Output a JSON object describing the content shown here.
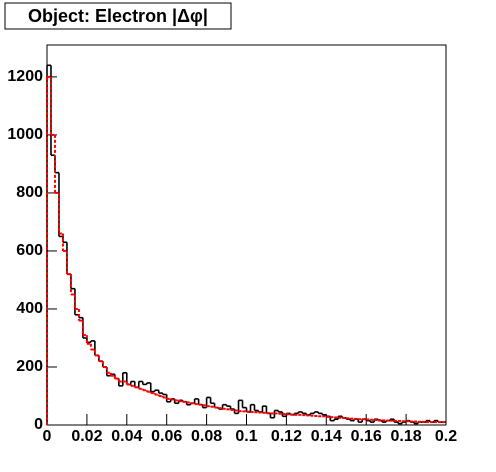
{
  "chart_data": {
    "type": "histogram",
    "title": "Object: Electron |Δφ|",
    "bins": [
      0,
      0.002,
      0.004,
      0.006,
      0.008,
      0.01,
      0.012,
      0.014,
      0.016,
      0.018,
      0.02,
      0.022,
      0.024,
      0.026,
      0.028,
      0.03,
      0.032,
      0.034,
      0.036,
      0.038,
      0.04,
      0.042,
      0.044,
      0.046,
      0.048,
      0.05,
      0.052,
      0.054,
      0.056,
      0.058,
      0.06,
      0.062,
      0.064,
      0.066,
      0.068,
      0.07,
      0.072,
      0.074,
      0.076,
      0.078,
      0.08,
      0.082,
      0.084,
      0.086,
      0.088,
      0.09,
      0.092,
      0.094,
      0.096,
      0.098,
      0.1,
      0.102,
      0.104,
      0.106,
      0.108,
      0.11,
      0.112,
      0.114,
      0.116,
      0.118,
      0.12,
      0.122,
      0.124,
      0.126,
      0.128,
      0.13,
      0.132,
      0.134,
      0.136,
      0.138,
      0.14,
      0.142,
      0.144,
      0.146,
      0.148,
      0.15,
      0.152,
      0.154,
      0.156,
      0.158,
      0.16,
      0.162,
      0.164,
      0.166,
      0.168,
      0.17,
      0.172,
      0.174,
      0.176,
      0.178,
      0.18,
      0.182,
      0.184,
      0.186,
      0.188,
      0.19,
      0.192,
      0.194,
      0.196,
      0.198,
      0.2
    ],
    "series": [
      {
        "color": "#000000",
        "dashed": false,
        "values": [
          1240,
          930,
          870,
          650,
          630,
          520,
          470,
          380,
          370,
          300,
          285,
          290,
          240,
          220,
          200,
          170,
          175,
          160,
          135,
          180,
          140,
          150,
          130,
          150,
          140,
          145,
          115,
          120,
          110,
          105,
          80,
          90,
          75,
          85,
          80,
          70,
          75,
          90,
          70,
          60,
          95,
          75,
          60,
          55,
          70,
          65,
          55,
          40,
          85,
          60,
          45,
          70,
          50,
          45,
          65,
          40,
          25,
          50,
          45,
          30,
          40,
          35,
          40,
          45,
          40,
          35,
          40,
          45,
          40,
          35,
          30,
          15,
          20,
          30,
          25,
          20,
          15,
          20,
          10,
          20,
          15,
          10,
          20,
          15,
          10,
          15,
          20,
          10,
          5,
          10,
          15,
          10,
          5,
          10,
          10,
          15,
          10,
          15,
          10,
          10
        ]
      },
      {
        "color": "#ff0000",
        "dashed": true,
        "values": [
          1200,
          1000,
          800,
          660,
          600,
          520,
          450,
          400,
          360,
          310,
          280,
          260,
          240,
          220,
          200,
          180,
          170,
          160,
          150,
          150,
          140,
          135,
          130,
          125,
          120,
          115,
          110,
          105,
          100,
          95,
          90,
          88,
          85,
          82,
          80,
          78,
          75,
          72,
          70,
          68,
          65,
          63,
          60,
          58,
          56,
          54,
          52,
          50,
          48,
          47,
          46,
          45,
          44,
          43,
          42,
          41,
          40,
          40,
          39,
          38,
          37,
          36,
          35,
          35,
          34,
          33,
          32,
          31,
          30,
          30,
          28,
          27,
          26,
          25,
          24,
          23,
          22,
          21,
          20,
          20,
          19,
          18,
          17,
          17,
          16,
          15,
          15,
          14,
          14,
          13,
          13,
          12,
          12,
          11,
          11,
          10,
          10,
          10,
          10,
          10
        ]
      }
    ],
    "xlim": [
      0,
      0.2
    ],
    "xticks": [
      0,
      0.02,
      0.04,
      0.06,
      0.08,
      0.1,
      0.12,
      0.14,
      0.16,
      0.18,
      0.2
    ],
    "ylim": [
      0,
      1310
    ],
    "yticks": [
      0,
      200,
      400,
      600,
      800,
      1000,
      1200
    ]
  }
}
